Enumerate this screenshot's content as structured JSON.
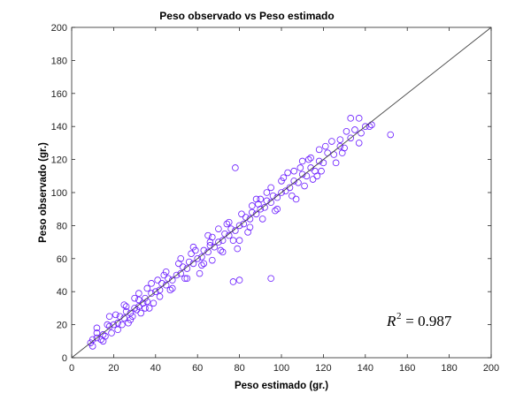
{
  "chart_data": {
    "type": "scatter",
    "title": "Peso observado vs Peso estimado",
    "xlabel": "Peso estimado (gr.)",
    "ylabel": "Peso observado (gr.)",
    "xlim": [
      0,
      200
    ],
    "ylim": [
      0,
      200
    ],
    "xticks": [
      0,
      20,
      40,
      60,
      80,
      100,
      120,
      140,
      160,
      180,
      200
    ],
    "yticks": [
      0,
      20,
      40,
      60,
      80,
      100,
      120,
      140,
      160,
      180,
      200
    ],
    "grid": false,
    "marker": "open-circle",
    "marker_color": "#6a1bff",
    "reference_line": {
      "type": "identity",
      "color": "#444444"
    },
    "annotation": {
      "symbol": "R",
      "exponent": "2",
      "text": " = 0.987"
    },
    "series": [
      {
        "points": [
          [
            9,
            9
          ],
          [
            10,
            11
          ],
          [
            12,
            12
          ],
          [
            12,
            15
          ],
          [
            15,
            14
          ],
          [
            16,
            13
          ],
          [
            18,
            19
          ],
          [
            20,
            20
          ],
          [
            22,
            21
          ],
          [
            23,
            25
          ],
          [
            25,
            24
          ],
          [
            26,
            28
          ],
          [
            28,
            27
          ],
          [
            30,
            30
          ],
          [
            32,
            31
          ],
          [
            32,
            35
          ],
          [
            35,
            36
          ],
          [
            36,
            34
          ],
          [
            38,
            39
          ],
          [
            40,
            40
          ],
          [
            42,
            41
          ],
          [
            43,
            45
          ],
          [
            45,
            44
          ],
          [
            46,
            48
          ],
          [
            48,
            47
          ],
          [
            50,
            50
          ],
          [
            52,
            51
          ],
          [
            53,
            55
          ],
          [
            55,
            54
          ],
          [
            56,
            58
          ],
          [
            58,
            57
          ],
          [
            60,
            60
          ],
          [
            62,
            61
          ],
          [
            63,
            65
          ],
          [
            65,
            64
          ],
          [
            66,
            68
          ],
          [
            68,
            67
          ],
          [
            70,
            70
          ],
          [
            72,
            71
          ],
          [
            73,
            75
          ],
          [
            75,
            74
          ],
          [
            76,
            78
          ],
          [
            78,
            77
          ],
          [
            80,
            80
          ],
          [
            82,
            81
          ],
          [
            83,
            85
          ],
          [
            85,
            84
          ],
          [
            86,
            88
          ],
          [
            88,
            87
          ],
          [
            90,
            90
          ],
          [
            92,
            91
          ],
          [
            93,
            95
          ],
          [
            95,
            94
          ],
          [
            96,
            98
          ],
          [
            98,
            97
          ],
          [
            100,
            100
          ],
          [
            102,
            101
          ],
          [
            104,
            103
          ],
          [
            106,
            107
          ],
          [
            108,
            106
          ],
          [
            110,
            111
          ],
          [
            112,
            110
          ],
          [
            114,
            115
          ],
          [
            116,
            113
          ],
          [
            118,
            119
          ],
          [
            120,
            118
          ],
          [
            122,
            124
          ],
          [
            125,
            123
          ],
          [
            128,
            128
          ],
          [
            130,
            127
          ],
          [
            133,
            133
          ],
          [
            135,
            138
          ],
          [
            138,
            136
          ],
          [
            140,
            140
          ],
          [
            143,
            141
          ],
          [
            152,
            135
          ],
          [
            133,
            145
          ],
          [
            128,
            132
          ],
          [
            118,
            126
          ],
          [
            115,
            108
          ],
          [
            110,
            119
          ],
          [
            100,
            107
          ],
          [
            98,
            90
          ],
          [
            95,
            103
          ],
          [
            90,
            96
          ],
          [
            86,
            92
          ],
          [
            80,
            71
          ],
          [
            78,
            115
          ],
          [
            75,
            82
          ],
          [
            72,
            64
          ],
          [
            70,
            78
          ],
          [
            67,
            59
          ],
          [
            65,
            74
          ],
          [
            62,
            56
          ],
          [
            58,
            67
          ],
          [
            55,
            48
          ],
          [
            52,
            60
          ],
          [
            48,
            42
          ],
          [
            45,
            52
          ],
          [
            42,
            37
          ],
          [
            38,
            45
          ],
          [
            35,
            30
          ],
          [
            32,
            39
          ],
          [
            28,
            23
          ],
          [
            25,
            32
          ],
          [
            22,
            17
          ],
          [
            18,
            25
          ],
          [
            15,
            10
          ],
          [
            12,
            18
          ],
          [
            10,
            7
          ],
          [
            79,
            66
          ],
          [
            95,
            48
          ],
          [
            80,
            47
          ],
          [
            77,
            46
          ],
          [
            66,
            70
          ],
          [
            61,
            51
          ],
          [
            57,
            63
          ],
          [
            41,
            47
          ],
          [
            37,
            30
          ],
          [
            103,
            112
          ],
          [
            107,
            96
          ],
          [
            113,
            120
          ],
          [
            117,
            110
          ],
          [
            121,
            128
          ],
          [
            126,
            118
          ],
          [
            131,
            137
          ],
          [
            137,
            130
          ],
          [
            84,
            76
          ],
          [
            88,
            96
          ],
          [
            91,
            84
          ],
          [
            93,
            100
          ],
          [
            97,
            89
          ],
          [
            101,
            109
          ],
          [
            105,
            98
          ],
          [
            109,
            115
          ],
          [
            27,
            21
          ],
          [
            30,
            36
          ],
          [
            33,
            27
          ],
          [
            36,
            42
          ],
          [
            39,
            33
          ],
          [
            44,
            50
          ],
          [
            47,
            41
          ],
          [
            51,
            57
          ],
          [
            54,
            48
          ],
          [
            59,
            65
          ],
          [
            63,
            57
          ],
          [
            67,
            73
          ],
          [
            71,
            65
          ],
          [
            74,
            81
          ],
          [
            77,
            71
          ],
          [
            81,
            87
          ],
          [
            85,
            79
          ],
          [
            89,
            93
          ],
          [
            14,
            11
          ],
          [
            17,
            20
          ],
          [
            19,
            15
          ],
          [
            21,
            26
          ],
          [
            24,
            20
          ],
          [
            26,
            31
          ],
          [
            29,
            25
          ],
          [
            31,
            29
          ],
          [
            34,
            33
          ],
          [
            137,
            145
          ],
          [
            142,
            140
          ],
          [
            129,
            124
          ],
          [
            124,
            131
          ],
          [
            119,
            113
          ],
          [
            114,
            121
          ],
          [
            111,
            104
          ],
          [
            106,
            113
          ]
        ]
      }
    ]
  }
}
